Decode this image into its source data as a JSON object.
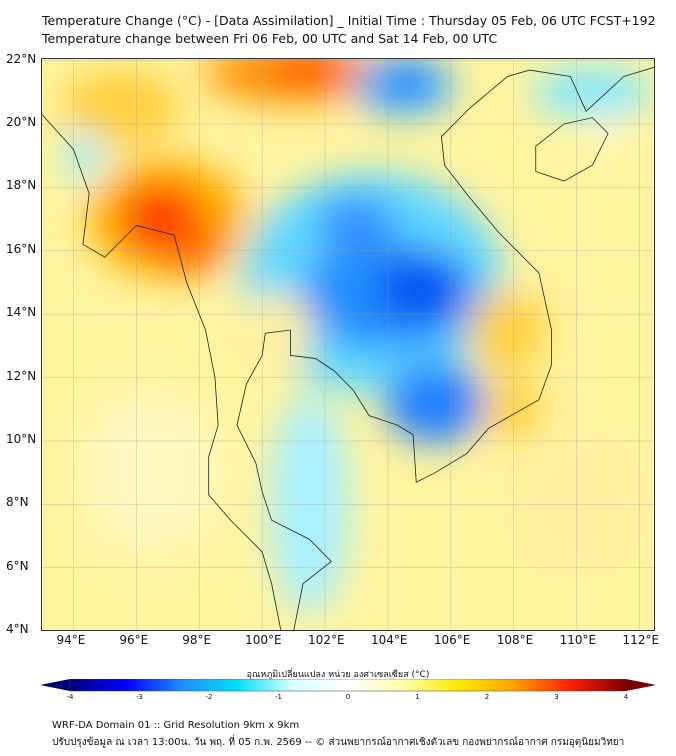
{
  "header": {
    "title_line1": "Temperature Change (°C) - [Data Assimilation] _ Initial Time : Thursday 05 Feb, 06 UTC FCST+192",
    "title_line2": "Temperature change between Fri 06 Feb, 00 UTC and Sat 14 Feb, 00 UTC"
  },
  "map": {
    "lat_ticks": [
      "22°N",
      "20°N",
      "18°N",
      "16°N",
      "14°N",
      "12°N",
      "10°N",
      "8°N",
      "6°N",
      "4°N"
    ],
    "lon_ticks": [
      "94°E",
      "96°E",
      "98°E",
      "100°E",
      "102°E",
      "104°E",
      "106°E",
      "108°E",
      "110°E",
      "112°E"
    ]
  },
  "colorbar": {
    "label": "อุณหภูมิเปลี่ยนแปลง หน่วย องศาเซลเซียส (°C)",
    "ticks": [
      "-4",
      "-3",
      "-2",
      "-1",
      "0",
      "1",
      "2",
      "3",
      "4"
    ],
    "colors": [
      "#00007a",
      "#0000ff",
      "#1e8cff",
      "#00e0ff",
      "#d8ffff",
      "#ffffff",
      "#ffffa8",
      "#ffe800",
      "#ffa000",
      "#ff2000",
      "#7a0000"
    ]
  },
  "footer": {
    "line1": "WRF-DA Domain 01 :: Grid Resolution 9km x 9km",
    "line2": "ปรับปรุงข้อมูล ณ เวลา 13:00น. วัน พฤ. ที่ 05 ก.พ. 2569 -- © ส่วนพยากรณ์อากาศเชิงตัวเลข กองพยากรณ์อากาศ กรมอุตุนิยมวิทยา"
  }
}
